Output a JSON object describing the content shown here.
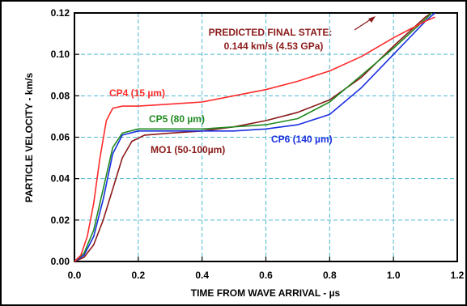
{
  "chart_data": {
    "type": "line",
    "xlabel": "TIME FROM WAVE ARRIVAL - µs",
    "ylabel": "PARTICLE VELOCITY - km/s",
    "xlim": [
      0.0,
      1.2
    ],
    "ylim": [
      0.0,
      0.12
    ],
    "x_ticks": [
      "0.0",
      "0.2",
      "0.4",
      "0.6",
      "0.8",
      "1.0",
      "1.2"
    ],
    "y_ticks": [
      "0.00",
      "0.02",
      "0.04",
      "0.06",
      "0.08",
      "0.10",
      "0.12"
    ],
    "grid": true,
    "grid_style": "dashed",
    "legend": "inline labels",
    "colors": {
      "CP4": "#ff2a2a",
      "CP5": "#1f8a1f",
      "CP6": "#1a2fe0",
      "MO1": "#8b1a1a",
      "grid": "#4fb8d0",
      "annotation": "#8b1a1a"
    },
    "annotation": {
      "line1": "PREDICTED FINAL STATE:",
      "line2": "0.144 km/s (4.53 GPa)"
    },
    "series": [
      {
        "name": "CP4 (15 µm)",
        "key": "CP4",
        "x": [
          0.0,
          0.02,
          0.04,
          0.06,
          0.08,
          0.1,
          0.12,
          0.15,
          0.2,
          0.3,
          0.4,
          0.5,
          0.6,
          0.7,
          0.8,
          0.9,
          1.0,
          1.1,
          1.13
        ],
        "y": [
          0.0,
          0.003,
          0.012,
          0.028,
          0.05,
          0.068,
          0.074,
          0.075,
          0.075,
          0.076,
          0.077,
          0.08,
          0.083,
          0.087,
          0.092,
          0.099,
          0.108,
          0.116,
          0.118
        ]
      },
      {
        "name": "CP5 (80 µm)",
        "key": "CP5",
        "x": [
          0.0,
          0.03,
          0.06,
          0.09,
          0.12,
          0.15,
          0.2,
          0.3,
          0.4,
          0.5,
          0.6,
          0.7,
          0.8,
          0.9,
          1.0,
          1.1,
          1.12
        ],
        "y": [
          0.0,
          0.004,
          0.015,
          0.035,
          0.055,
          0.062,
          0.064,
          0.064,
          0.064,
          0.065,
          0.066,
          0.069,
          0.077,
          0.09,
          0.103,
          0.117,
          0.12
        ]
      },
      {
        "name": "CP6 (140 µm)",
        "key": "CP6",
        "x": [
          0.0,
          0.03,
          0.06,
          0.09,
          0.12,
          0.15,
          0.2,
          0.3,
          0.4,
          0.5,
          0.6,
          0.7,
          0.8,
          0.9,
          1.0,
          1.1,
          1.13
        ],
        "y": [
          0.0,
          0.003,
          0.012,
          0.03,
          0.052,
          0.061,
          0.063,
          0.063,
          0.063,
          0.063,
          0.064,
          0.066,
          0.071,
          0.084,
          0.1,
          0.116,
          0.12
        ]
      },
      {
        "name": "MO1 (50-100µm)",
        "key": "MO1",
        "x": [
          0.0,
          0.03,
          0.06,
          0.09,
          0.12,
          0.15,
          0.18,
          0.22,
          0.3,
          0.4,
          0.5,
          0.6,
          0.7,
          0.8,
          0.9,
          1.0,
          1.1,
          1.12
        ],
        "y": [
          0.0,
          0.002,
          0.008,
          0.02,
          0.035,
          0.05,
          0.058,
          0.061,
          0.062,
          0.063,
          0.065,
          0.068,
          0.072,
          0.078,
          0.089,
          0.104,
          0.118,
          0.12
        ]
      }
    ]
  }
}
